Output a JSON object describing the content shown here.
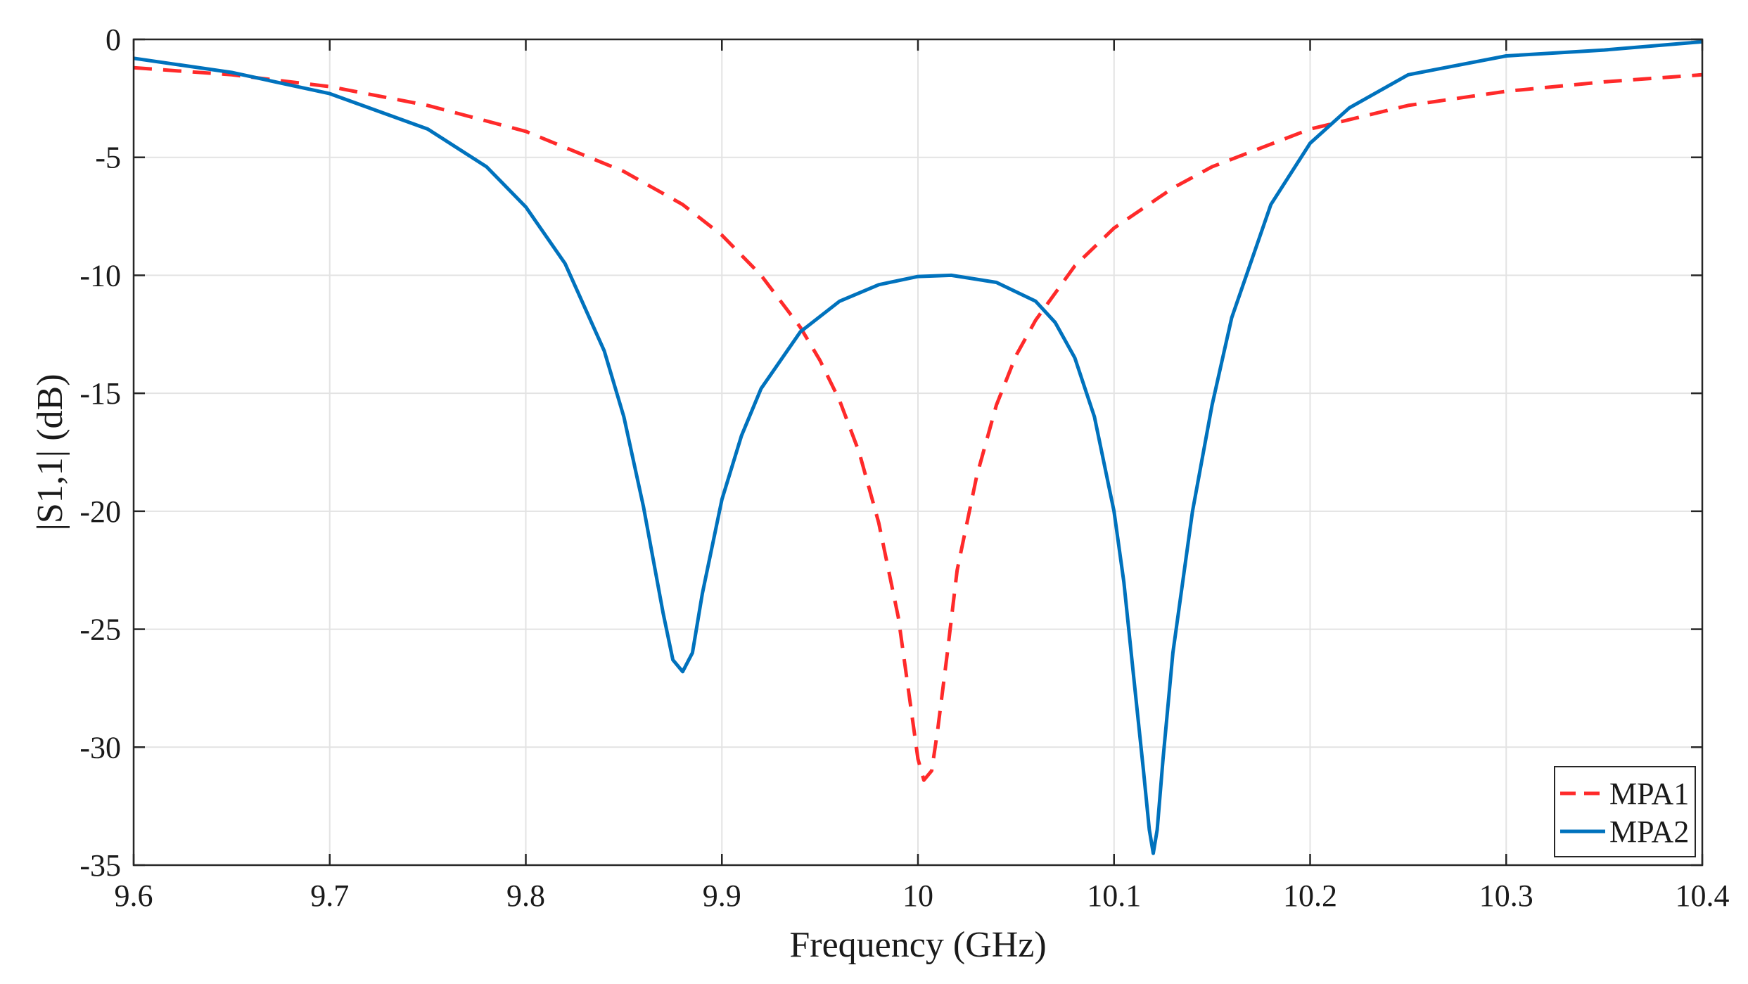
{
  "chart_data": {
    "type": "line",
    "title": "",
    "xlabel": "Frequency (GHz)",
    "ylabel": "|S1,1| (dB)",
    "xlim": [
      9.6,
      10.4
    ],
    "ylim": [
      -35,
      0
    ],
    "xticks": [
      9.6,
      9.7,
      9.8,
      9.9,
      10.0,
      10.1,
      10.2,
      10.3,
      10.4
    ],
    "xtick_labels": [
      "9.6",
      "9.7",
      "9.8",
      "9.9",
      "10",
      "10.1",
      "10.2",
      "10.3",
      "10.4"
    ],
    "yticks": [
      0,
      -5,
      -10,
      -15,
      -20,
      -25,
      -30,
      -35
    ],
    "ytick_labels": [
      "0",
      "-5",
      "-10",
      "-15",
      "-20",
      "-25",
      "-30",
      "-35"
    ],
    "grid": true,
    "legend_position": "bottom-right",
    "series": [
      {
        "name": "MPA1",
        "color": "#ff2a2a",
        "style": "dashed",
        "x": [
          9.6,
          9.65,
          9.7,
          9.75,
          9.8,
          9.85,
          9.88,
          9.9,
          9.92,
          9.94,
          9.95,
          9.96,
          9.97,
          9.98,
          9.99,
          9.995,
          10.0,
          10.003,
          10.007,
          10.01,
          10.015,
          10.02,
          10.03,
          10.04,
          10.05,
          10.06,
          10.08,
          10.1,
          10.13,
          10.15,
          10.2,
          10.25,
          10.3,
          10.35,
          10.4
        ],
        "y": [
          -1.2,
          -1.5,
          -2.0,
          -2.8,
          -3.9,
          -5.6,
          -7.0,
          -8.3,
          -10.0,
          -12.2,
          -13.6,
          -15.3,
          -17.5,
          -20.5,
          -24.5,
          -27.5,
          -30.5,
          -31.4,
          -31.0,
          -29.3,
          -26.0,
          -22.5,
          -18.5,
          -15.5,
          -13.4,
          -11.9,
          -9.6,
          -8.0,
          -6.3,
          -5.4,
          -3.8,
          -2.8,
          -2.2,
          -1.8,
          -1.5
        ]
      },
      {
        "name": "MPA2",
        "color": "#0072bd",
        "style": "solid",
        "x": [
          9.6,
          9.65,
          9.7,
          9.75,
          9.78,
          9.8,
          9.82,
          9.84,
          9.85,
          9.86,
          9.87,
          9.875,
          9.88,
          9.885,
          9.89,
          9.9,
          9.91,
          9.92,
          9.94,
          9.96,
          9.98,
          10.0,
          10.017,
          10.04,
          10.06,
          10.07,
          10.08,
          10.09,
          10.1,
          10.105,
          10.11,
          10.115,
          10.118,
          10.12,
          10.122,
          10.125,
          10.13,
          10.14,
          10.15,
          10.16,
          10.18,
          10.2,
          10.22,
          10.25,
          10.3,
          10.35,
          10.4
        ],
        "y": [
          -0.8,
          -1.4,
          -2.3,
          -3.8,
          -5.4,
          -7.1,
          -9.5,
          -13.2,
          -16.0,
          -19.8,
          -24.3,
          -26.3,
          -26.8,
          -26.0,
          -23.5,
          -19.5,
          -16.8,
          -14.8,
          -12.4,
          -11.1,
          -10.4,
          -10.05,
          -10.0,
          -10.3,
          -11.1,
          -12.0,
          -13.5,
          -16.0,
          -20.0,
          -23.0,
          -27.0,
          -31.0,
          -33.5,
          -34.5,
          -33.5,
          -30.5,
          -26.0,
          -20.0,
          -15.5,
          -11.8,
          -7.0,
          -4.4,
          -2.9,
          -1.5,
          -0.7,
          -0.45,
          -0.1
        ]
      }
    ]
  }
}
